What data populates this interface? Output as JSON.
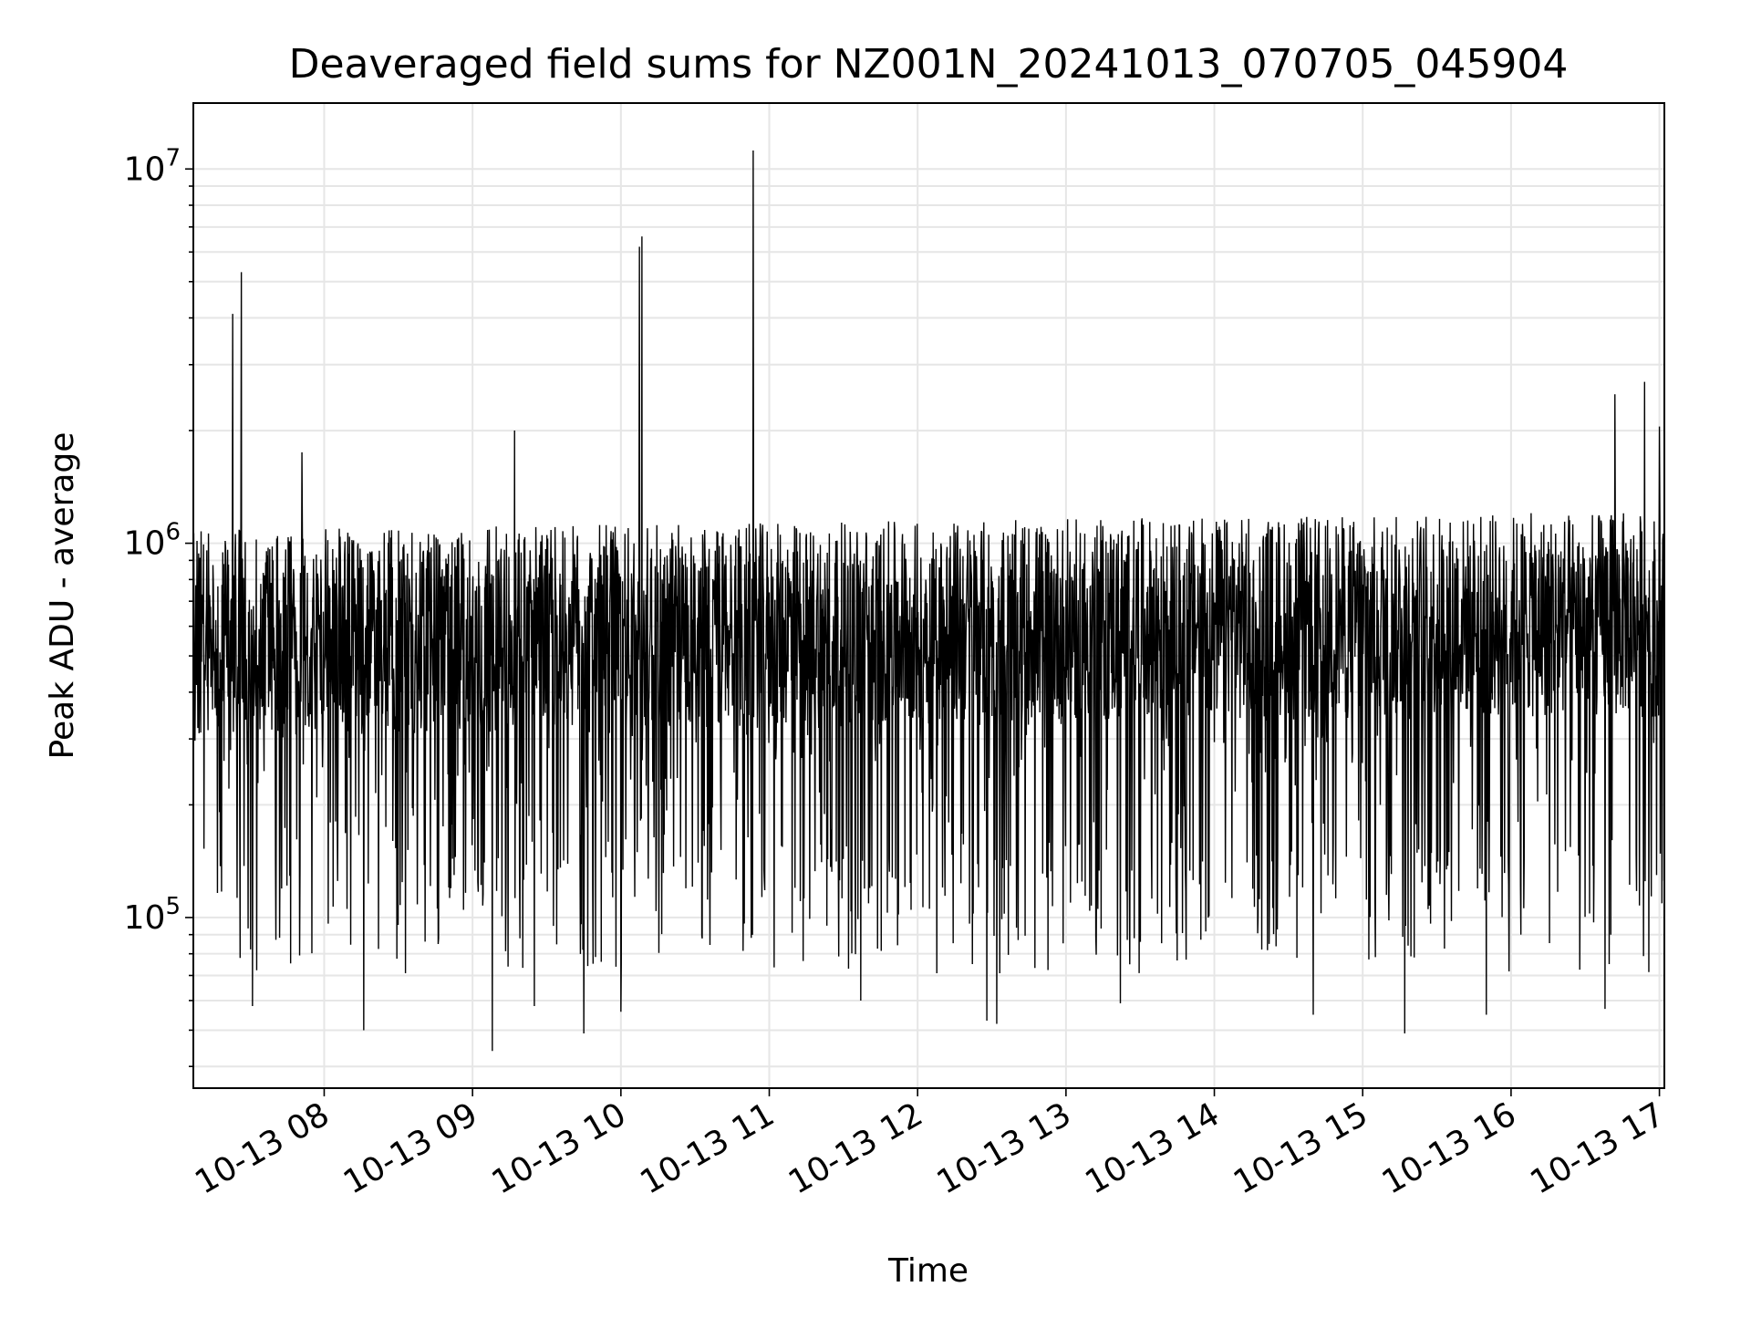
{
  "chart_data": {
    "type": "line",
    "title": "Deaveraged field sums for NZ001N_20241013_070705_045904",
    "xlabel": "Time",
    "ylabel": "Peak ADU - average",
    "yscale": "log",
    "grid": true,
    "grid_color": "#e6e6e6",
    "line_color": "#000000",
    "xlim": [
      "2024-10-13 07:07:05",
      "2024-10-13 17:02:00"
    ],
    "ylim": [
      35000,
      15000000
    ],
    "x_ticks": [
      "10-13 08",
      "10-13 09",
      "10-13 10",
      "10-13 11",
      "10-13 12",
      "10-13 13",
      "10-13 14",
      "10-13 15",
      "10-13 16",
      "10-13 17"
    ],
    "y_tick_labels": [
      {
        "value": 100000,
        "base": "10",
        "exponent": "5"
      },
      {
        "value": 1000000,
        "base": "10",
        "exponent": "6"
      },
      {
        "value": 10000000,
        "base": "10",
        "exponent": "7"
      }
    ],
    "series": [
      {
        "style": "dense line, roughly one point per 10 s",
        "x_start": "2024-10-13 07:07:05",
        "x_end": "2024-10-13 17:02:00",
        "typical_range": [
          60000,
          1200000
        ],
        "spikes": [
          {
            "x": "2024-10-13 07:23:00",
            "y": 4100000
          },
          {
            "x": "2024-10-13 07:26:30",
            "y": 5300000
          },
          {
            "x": "2024-10-13 07:51:00",
            "y": 1750000
          },
          {
            "x": "2024-10-13 09:17:00",
            "y": 2000000
          },
          {
            "x": "2024-10-13 10:07:30",
            "y": 6200000
          },
          {
            "x": "2024-10-13 10:08:30",
            "y": 6600000
          },
          {
            "x": "2024-10-13 10:53:30",
            "y": 11200000
          },
          {
            "x": "2024-10-13 16:42:00",
            "y": 2500000
          },
          {
            "x": "2024-10-13 16:54:00",
            "y": 2700000
          },
          {
            "x": "2024-10-13 17:00:00",
            "y": 2050000
          }
        ],
        "dips": [
          {
            "x": "2024-10-13 07:26:00",
            "y": 78000
          },
          {
            "x": "2024-10-13 07:31:00",
            "y": 58000
          },
          {
            "x": "2024-10-13 08:16:00",
            "y": 50000
          },
          {
            "x": "2024-10-13 09:08:00",
            "y": 44000
          },
          {
            "x": "2024-10-13 09:25:00",
            "y": 58000
          },
          {
            "x": "2024-10-13 09:45:00",
            "y": 49000
          },
          {
            "x": "2024-10-13 10:00:00",
            "y": 56000
          },
          {
            "x": "2024-10-13 11:37:00",
            "y": 60000
          },
          {
            "x": "2024-10-13 12:28:00",
            "y": 53000
          },
          {
            "x": "2024-10-13 12:32:00",
            "y": 52000
          },
          {
            "x": "2024-10-13 13:22:00",
            "y": 59000
          },
          {
            "x": "2024-10-13 14:40:00",
            "y": 55000
          },
          {
            "x": "2024-10-13 15:17:00",
            "y": 49000
          },
          {
            "x": "2024-10-13 15:50:00",
            "y": 55000
          },
          {
            "x": "2024-10-13 16:38:00",
            "y": 57000
          }
        ]
      }
    ]
  }
}
